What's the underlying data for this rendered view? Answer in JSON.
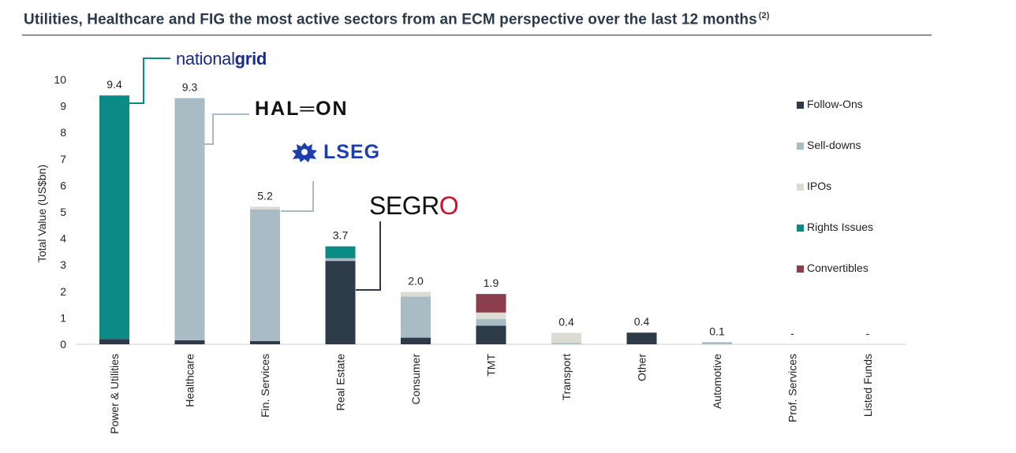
{
  "title": "Utilities, Healthcare and FIG the most active sectors from an ECM perspective over the last 12 months",
  "title_footnote": "(2)",
  "logos": {
    "national_grid": {
      "light": "national",
      "bold": "grid"
    },
    "haleon": "HAL═ON",
    "lseg": "LSEG",
    "segro": {
      "main": "SEGR",
      "accent": "O"
    }
  },
  "colors": {
    "follow_ons": "#2d3a48",
    "sell_downs": "#a9bcc5",
    "ipos": "#dcdcd2",
    "rights_issues": "#0b8a86",
    "convertibles": "#8b3e4c",
    "title": "#2b3a4a"
  },
  "chart_data": {
    "type": "bar",
    "stacked": true,
    "ylabel": "Total Value (US$bn)",
    "ylim": [
      0,
      10
    ],
    "yticks": [
      0,
      1,
      2,
      3,
      4,
      5,
      6,
      7,
      8,
      9,
      10
    ],
    "categories": [
      "Power & Utilities",
      "Healthcare",
      "Fin. Services",
      "Real Estate",
      "Consumer",
      "TMT",
      "Transport",
      "Other",
      "Automotive",
      "Prof. Services",
      "Listed Funds"
    ],
    "totals_labels": [
      "9.4",
      "9.3",
      "5.2",
      "3.7",
      "2.0",
      "1.9",
      "0.4",
      "0.4",
      "0.1",
      "-",
      "-"
    ],
    "series": [
      {
        "name": "Follow-Ons",
        "color": "#2d3a48",
        "values": [
          0.2,
          0.15,
          0.12,
          3.15,
          0.25,
          0.7,
          0,
          0.44,
          0,
          0,
          0
        ]
      },
      {
        "name": "Sell-downs",
        "color": "#a9bcc5",
        "values": [
          0,
          9.15,
          4.98,
          0.1,
          1.55,
          0.25,
          0.05,
          0,
          0.08,
          0,
          0
        ]
      },
      {
        "name": "IPOs",
        "color": "#dcdcd2",
        "values": [
          0,
          0,
          0.1,
          0,
          0.18,
          0.25,
          0.38,
          0,
          0,
          0,
          0
        ]
      },
      {
        "name": "Rights Issues",
        "color": "#0b8a86",
        "values": [
          9.2,
          0,
          0,
          0.45,
          0,
          0,
          0,
          0,
          0,
          0,
          0
        ]
      },
      {
        "name": "Convertibles",
        "color": "#8b3e4c",
        "values": [
          0,
          0,
          0,
          0,
          0,
          0.7,
          0,
          0,
          0,
          0,
          0
        ]
      }
    ],
    "legend_position": "right",
    "grid": false
  }
}
